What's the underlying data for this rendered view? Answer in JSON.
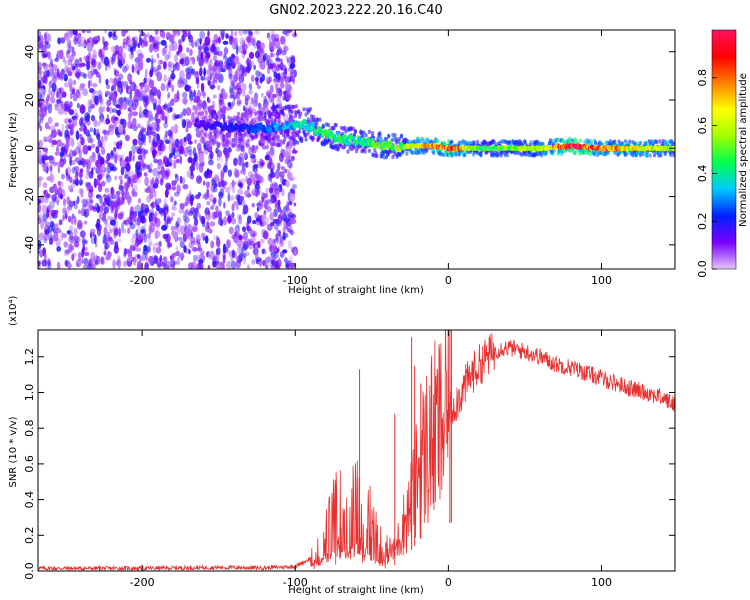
{
  "title": "GN02.2023.222.20.16.C40",
  "chart_data": [
    {
      "type": "heatmap",
      "name": "spectrogram",
      "xlabel": "Height of straight line (km)",
      "ylabel": "Frequency (Hz)",
      "xlim": [
        -268,
        148
      ],
      "ylim": [
        -50,
        49
      ],
      "xticks": [
        -200,
        -100,
        0,
        100
      ],
      "yticks": [
        -40,
        -20,
        0,
        20,
        40
      ],
      "colorbar": {
        "label": "Normalized spectral amplitude",
        "range": [
          0,
          1
        ],
        "ticks": [
          0.0,
          0.2,
          0.4,
          0.6,
          0.8
        ],
        "colormap": [
          "#e5c5f5",
          "#7a00ff",
          "#0020ff",
          "#00c8ff",
          "#00ff50",
          "#a0ff00",
          "#ffff00",
          "#ff8000",
          "#ff0000",
          "#ff1060"
        ]
      },
      "ridge": {
        "x": [
          -165,
          -150,
          -130,
          -110,
          -95,
          -80,
          -70,
          -60,
          -50,
          -40,
          -30,
          -20,
          -10,
          0,
          20,
          40,
          60,
          80,
          100,
          120,
          148
        ],
        "frequency": [
          10,
          9,
          8,
          9,
          10,
          6,
          4,
          3,
          2,
          1,
          0.5,
          1,
          1,
          0,
          0,
          0,
          0,
          1,
          0,
          0,
          0
        ],
        "amplitude": [
          0.15,
          0.18,
          0.22,
          0.3,
          0.42,
          0.45,
          0.45,
          0.42,
          0.48,
          0.5,
          0.55,
          0.7,
          0.75,
          0.9,
          0.5,
          0.55,
          0.6,
          0.95,
          0.85,
          0.7,
          0.6
        ]
      },
      "noise_region": {
        "x": [
          -268,
          -100
        ],
        "amplitude": [
          0.05,
          0.2
        ]
      }
    },
    {
      "type": "line",
      "name": "snr",
      "xlabel": "Height of straight line (km)",
      "ylabel": "SNR (10 * v/v)",
      "y_scale_label": "(x10⁴)",
      "xlim": [
        -268,
        148
      ],
      "ylim": [
        0,
        13500
      ],
      "xticks": [
        -200,
        -100,
        0,
        100
      ],
      "yticks": [
        0,
        2000,
        4000,
        6000,
        8000,
        10000,
        12000
      ],
      "ytick_labels": [
        "0.0",
        "0.2",
        "0.4",
        "0.6",
        "0.8",
        "1.0",
        "1.2"
      ],
      "color": "#e83030",
      "series": [
        {
          "x": [
            -268,
            -200,
            -150,
            -120,
            -100,
            -90,
            -80,
            -75,
            -70,
            -65,
            -60,
            -55,
            -50,
            -45,
            -40,
            -35,
            -30,
            -25,
            -20,
            -15,
            -10,
            -5,
            0,
            5,
            10,
            15,
            20,
            25,
            30,
            35,
            40,
            50,
            60,
            70,
            80,
            90,
            100,
            110,
            120,
            130,
            140,
            148
          ],
          "y": [
            150,
            150,
            200,
            180,
            250,
            700,
            1800,
            2800,
            3300,
            3000,
            3500,
            2800,
            2500,
            1500,
            1200,
            1100,
            2500,
            3500,
            5500,
            6800,
            7500,
            8000,
            8800,
            9500,
            10200,
            11000,
            11500,
            12000,
            12300,
            12500,
            12500,
            12300,
            12000,
            11600,
            11400,
            11100,
            10800,
            10500,
            10200,
            10000,
            9700,
            9300
          ]
        }
      ],
      "spikes": {
        "x": [
          -58,
          -35,
          -24,
          -22,
          -18,
          1,
          2
        ],
        "y": [
          11300,
          8800,
          13100,
          11500,
          10500,
          14200,
          13500
        ]
      }
    }
  ]
}
